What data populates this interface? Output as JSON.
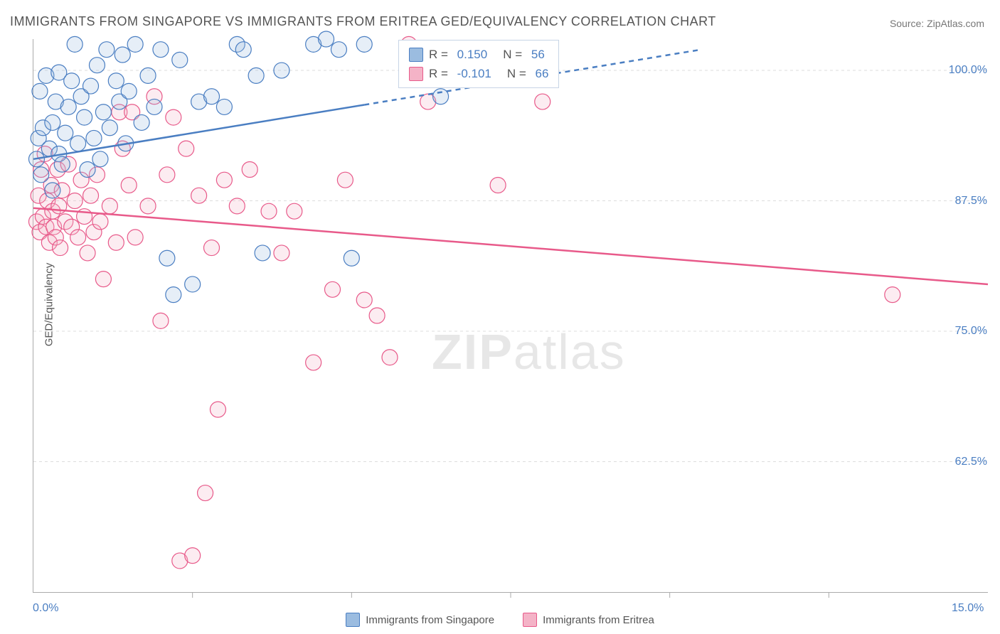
{
  "title": "IMMIGRANTS FROM SINGAPORE VS IMMIGRANTS FROM ERITREA GED/EQUIVALENCY CORRELATION CHART",
  "source": "Source: ZipAtlas.com",
  "ylabel": "GED/Equivalency",
  "watermark_a": "ZIP",
  "watermark_b": "atlas",
  "chart": {
    "type": "scatter-with-regression",
    "background_color": "#ffffff",
    "grid_color": "#dddddd",
    "axis_color": "#aaaaaa",
    "label_color": "#4a7ec2",
    "text_color": "#555555",
    "xlim": [
      0,
      15
    ],
    "ylim": [
      50,
      103
    ],
    "x_ticks": [
      0.0,
      15.0
    ],
    "x_minor_ticks": [
      2.5,
      5.0,
      7.5,
      10.0,
      12.5
    ],
    "y_ticks": [
      62.5,
      75.0,
      87.5,
      100.0
    ],
    "marker_radius": 11,
    "marker_stroke_width": 1.2,
    "marker_fill_opacity": 0.25,
    "line_width": 2.5,
    "series": [
      {
        "name": "Immigrants from Singapore",
        "color_stroke": "#4a7ec2",
        "color_fill": "#9bbce0",
        "R": "0.150",
        "N": "56",
        "regression": {
          "x1": 0,
          "y1": 91.5,
          "x2": 10.5,
          "y2": 102.0,
          "dash_after_x": 5.2
        },
        "points": [
          [
            0.05,
            91.5
          ],
          [
            0.08,
            93.5
          ],
          [
            0.1,
            98.0
          ],
          [
            0.12,
            90.0
          ],
          [
            0.15,
            94.5
          ],
          [
            0.2,
            99.5
          ],
          [
            0.25,
            92.5
          ],
          [
            0.3,
            95.0
          ],
          [
            0.3,
            88.5
          ],
          [
            0.35,
            97.0
          ],
          [
            0.4,
            92.0
          ],
          [
            0.4,
            99.8
          ],
          [
            0.45,
            91.0
          ],
          [
            0.5,
            94.0
          ],
          [
            0.55,
            96.5
          ],
          [
            0.6,
            99.0
          ],
          [
            0.65,
            102.5
          ],
          [
            0.7,
            93.0
          ],
          [
            0.75,
            97.5
          ],
          [
            0.8,
            95.5
          ],
          [
            0.85,
            90.5
          ],
          [
            0.9,
            98.5
          ],
          [
            0.95,
            93.5
          ],
          [
            1.0,
            100.5
          ],
          [
            1.05,
            91.5
          ],
          [
            1.1,
            96.0
          ],
          [
            1.15,
            102.0
          ],
          [
            1.2,
            94.5
          ],
          [
            1.3,
            99.0
          ],
          [
            1.35,
            97.0
          ],
          [
            1.4,
            101.5
          ],
          [
            1.45,
            93.0
          ],
          [
            1.5,
            98.0
          ],
          [
            1.6,
            102.5
          ],
          [
            1.7,
            95.0
          ],
          [
            1.8,
            99.5
          ],
          [
            1.9,
            96.5
          ],
          [
            2.0,
            102.0
          ],
          [
            2.1,
            82.0
          ],
          [
            2.2,
            78.5
          ],
          [
            2.3,
            101.0
          ],
          [
            2.5,
            79.5
          ],
          [
            2.6,
            97.0
          ],
          [
            2.8,
            97.5
          ],
          [
            3.0,
            96.5
          ],
          [
            3.2,
            102.5
          ],
          [
            3.3,
            102.0
          ],
          [
            3.5,
            99.5
          ],
          [
            3.6,
            82.5
          ],
          [
            3.9,
            100.0
          ],
          [
            4.4,
            102.5
          ],
          [
            4.6,
            103.0
          ],
          [
            4.8,
            102.0
          ],
          [
            5.0,
            82.0
          ],
          [
            5.2,
            102.5
          ],
          [
            6.4,
            97.5
          ]
        ]
      },
      {
        "name": "Immigrants from Eritrea",
        "color_stroke": "#e85a8a",
        "color_fill": "#f4b3c7",
        "R": "-0.101",
        "N": "66",
        "regression": {
          "x1": 0,
          "y1": 86.8,
          "x2": 15.0,
          "y2": 79.5,
          "dash_after_x": null
        },
        "points": [
          [
            0.05,
            85.5
          ],
          [
            0.08,
            88.0
          ],
          [
            0.1,
            84.5
          ],
          [
            0.12,
            90.5
          ],
          [
            0.15,
            86.0
          ],
          [
            0.18,
            92.0
          ],
          [
            0.2,
            85.0
          ],
          [
            0.22,
            87.5
          ],
          [
            0.25,
            83.5
          ],
          [
            0.28,
            89.0
          ],
          [
            0.3,
            86.5
          ],
          [
            0.32,
            85.0
          ],
          [
            0.35,
            84.0
          ],
          [
            0.38,
            90.5
          ],
          [
            0.4,
            87.0
          ],
          [
            0.42,
            83.0
          ],
          [
            0.45,
            88.5
          ],
          [
            0.5,
            85.5
          ],
          [
            0.55,
            91.0
          ],
          [
            0.6,
            85.0
          ],
          [
            0.65,
            87.5
          ],
          [
            0.7,
            84.0
          ],
          [
            0.75,
            89.5
          ],
          [
            0.8,
            86.0
          ],
          [
            0.85,
            82.5
          ],
          [
            0.9,
            88.0
          ],
          [
            0.95,
            84.5
          ],
          [
            1.0,
            90.0
          ],
          [
            1.05,
            85.5
          ],
          [
            1.1,
            80.0
          ],
          [
            1.2,
            87.0
          ],
          [
            1.3,
            83.5
          ],
          [
            1.35,
            96.0
          ],
          [
            1.4,
            92.5
          ],
          [
            1.5,
            89.0
          ],
          [
            1.55,
            96.0
          ],
          [
            1.6,
            84.0
          ],
          [
            1.8,
            87.0
          ],
          [
            1.9,
            97.5
          ],
          [
            2.0,
            76.0
          ],
          [
            2.1,
            90.0
          ],
          [
            2.2,
            95.5
          ],
          [
            2.3,
            53.0
          ],
          [
            2.4,
            92.5
          ],
          [
            2.5,
            53.5
          ],
          [
            2.6,
            88.0
          ],
          [
            2.7,
            59.5
          ],
          [
            2.8,
            83.0
          ],
          [
            2.9,
            67.5
          ],
          [
            3.0,
            89.5
          ],
          [
            3.2,
            87.0
          ],
          [
            3.4,
            90.5
          ],
          [
            3.7,
            86.5
          ],
          [
            3.9,
            82.5
          ],
          [
            4.1,
            86.5
          ],
          [
            4.4,
            72.0
          ],
          [
            4.7,
            79.0
          ],
          [
            4.9,
            89.5
          ],
          [
            5.2,
            78.0
          ],
          [
            5.4,
            76.5
          ],
          [
            5.6,
            72.5
          ],
          [
            5.9,
            102.5
          ],
          [
            6.2,
            97.0
          ],
          [
            7.3,
            89.0
          ],
          [
            8.0,
            97.0
          ],
          [
            13.5,
            78.5
          ]
        ]
      }
    ]
  },
  "legend": {
    "items": [
      {
        "label": "Immigrants from Singapore",
        "swatch_fill": "#9bbce0",
        "swatch_stroke": "#4a7ec2"
      },
      {
        "label": "Immigrants from Eritrea",
        "swatch_fill": "#f4b3c7",
        "swatch_stroke": "#e85a8a"
      }
    ]
  }
}
